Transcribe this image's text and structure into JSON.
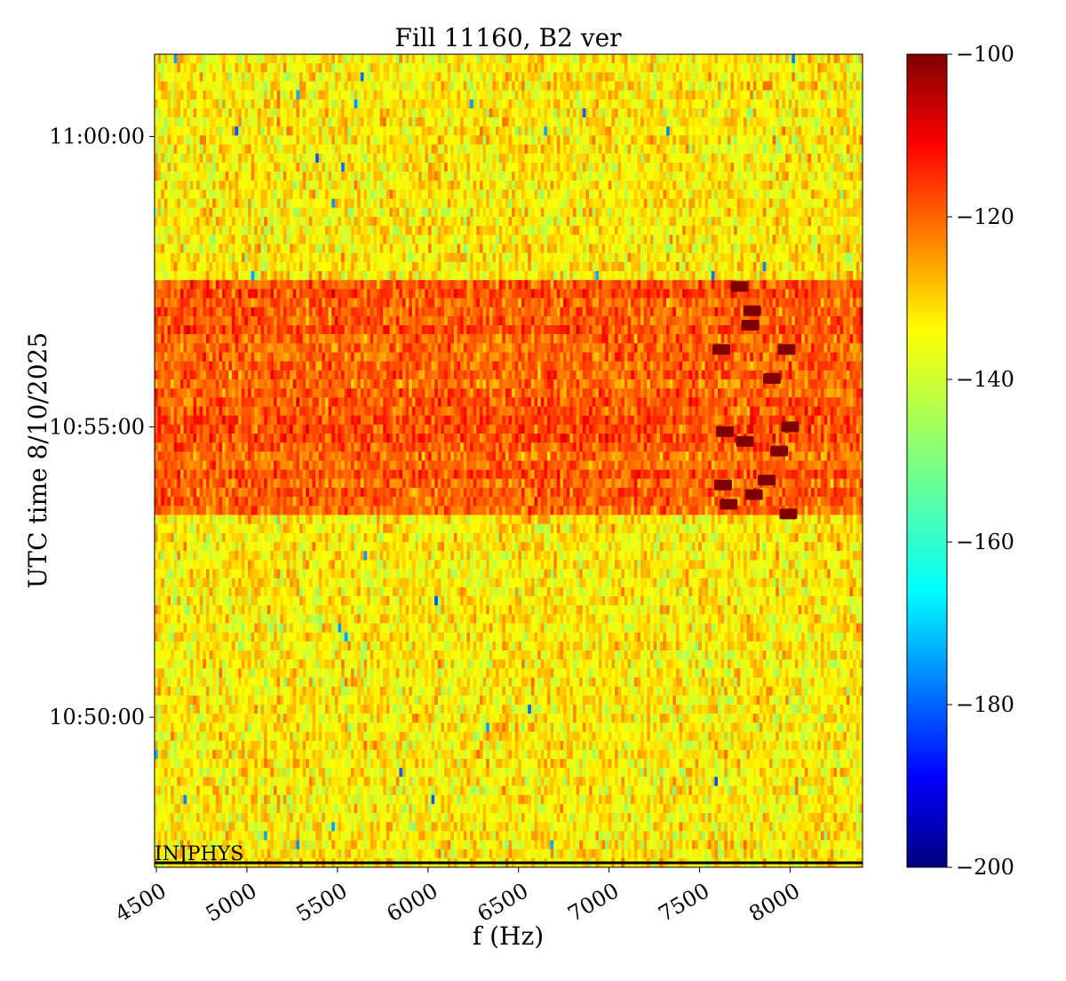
{
  "chart_data": {
    "type": "heatmap",
    "title": "Fill 11160, B2 ver",
    "xlabel": "f (Hz)",
    "ylabel": "UTC time 8/10/2025",
    "xlim": [
      4490,
      8400
    ],
    "ylim": [
      "10:47:25",
      "11:01:25"
    ],
    "x_ticks": [
      4500,
      5000,
      5500,
      6000,
      6500,
      7000,
      7500,
      8000
    ],
    "y_ticks": [
      "10:50:00",
      "10:55:00",
      "11:00:00"
    ],
    "colorbar": {
      "colormap": "jet",
      "min": -200,
      "max": -100,
      "ticks": [
        -100,
        -120,
        -140,
        -160,
        -180,
        -200
      ]
    },
    "baseline_level": -136,
    "active_band": {
      "start": "10:53:25",
      "end": "10:57:35",
      "level": -121
    },
    "peak_trace": {
      "level": -100,
      "points": [
        {
          "f": 7720,
          "t": "10:57:25"
        },
        {
          "f": 7790,
          "t": "10:57:00"
        },
        {
          "f": 7780,
          "t": "10:56:45"
        },
        {
          "f": 7980,
          "t": "10:56:20"
        },
        {
          "f": 7620,
          "t": "10:56:20"
        },
        {
          "f": 7900,
          "t": "10:55:50"
        },
        {
          "f": 8000,
          "t": "10:55:00"
        },
        {
          "f": 7640,
          "t": "10:54:55"
        },
        {
          "f": 7750,
          "t": "10:54:45"
        },
        {
          "f": 7940,
          "t": "10:54:35"
        },
        {
          "f": 7630,
          "t": "10:54:00"
        },
        {
          "f": 7870,
          "t": "10:54:05"
        },
        {
          "f": 7800,
          "t": "10:53:50"
        },
        {
          "f": 7660,
          "t": "10:53:40"
        },
        {
          "f": 7990,
          "t": "10:53:30"
        }
      ]
    },
    "annotation": {
      "text": "INJPHYS",
      "t": "10:47:25",
      "f_start": 4490,
      "f_end": 8400
    }
  }
}
